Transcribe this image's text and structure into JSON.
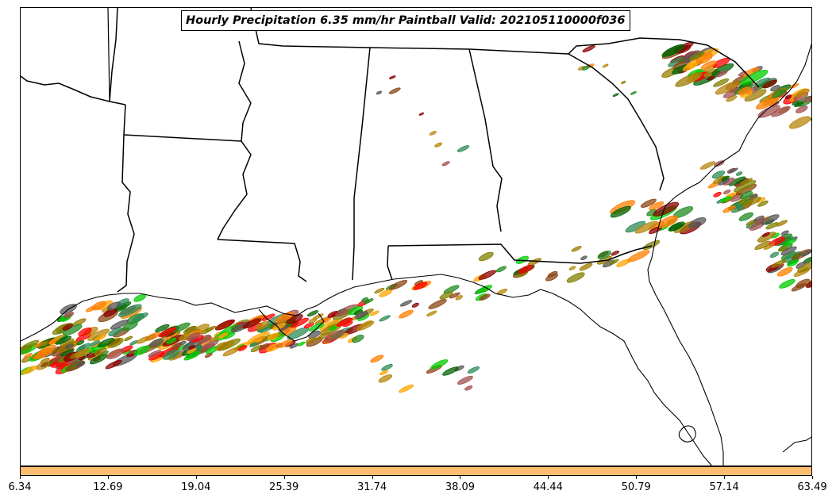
{
  "title": "Hourly Precipitation 6.35 mm/hr Paintball Valid: 202105110000f036",
  "colorbar": {
    "color": "#fdbf6f",
    "ticks": [
      "6.34",
      "12.69",
      "19.04",
      "25.39",
      "31.74",
      "38.09",
      "44.44",
      "50.79",
      "57.14",
      "63.49"
    ]
  },
  "member_colors": [
    "#ff0000",
    "#ff7f00",
    "#00cc00",
    "#808000",
    "#b8860b",
    "#ffa500",
    "#228b22",
    "#8b4513",
    "#8b0000",
    "#006400",
    "#a05050",
    "#2e8b57",
    "#555555",
    "#9b7b00"
  ]
}
